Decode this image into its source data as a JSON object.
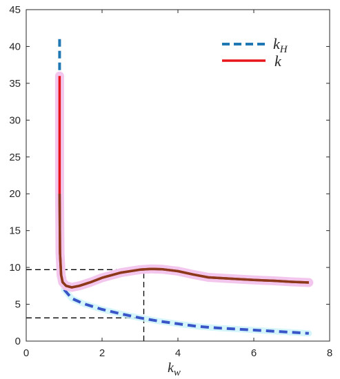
{
  "chart_data": {
    "type": "line",
    "xlabel": "k",
    "xlabel_sub": "w",
    "xlim": [
      0,
      8
    ],
    "ylim": [
      0,
      45
    ],
    "xticks": [
      0,
      2,
      4,
      6,
      8
    ],
    "yticks": [
      0,
      5,
      10,
      15,
      20,
      25,
      30,
      35,
      40,
      45
    ],
    "grid": false,
    "legend_position": "top-right",
    "colors": {
      "kH": "#1f77b4",
      "kH_lower": "#3a55c8",
      "k": "#e8161b",
      "k_overlay": "#8a3a1a",
      "highlight": "#f3c6ee",
      "highlight_blue": "#c9f2f7",
      "reference": "#000000"
    },
    "series": [
      {
        "name": "k",
        "name_sub": "H",
        "style": "dashed",
        "x": [
          0.88,
          0.88,
          1.0,
          1.2,
          1.5,
          2.0,
          2.5,
          3.0,
          3.5,
          4.0,
          4.5,
          5.0,
          5.5,
          6.0,
          6.5,
          7.0,
          7.45
        ],
        "y": [
          41.0,
          36.5,
          7.0,
          5.8,
          5.1,
          4.3,
          3.7,
          3.15,
          2.7,
          2.35,
          2.0,
          1.8,
          1.65,
          1.5,
          1.35,
          1.2,
          1.05
        ]
      },
      {
        "name": "k",
        "style": "solid",
        "x": [
          0.88,
          0.88,
          0.89,
          0.92,
          0.96,
          1.05,
          1.2,
          1.4,
          1.7,
          2.0,
          2.5,
          3.0,
          3.3,
          3.6,
          4.0,
          4.4,
          4.8,
          5.5,
          6.0,
          6.5,
          7.0,
          7.45
        ],
        "y": [
          36.0,
          20.0,
          12.0,
          9.0,
          8.0,
          7.5,
          7.3,
          7.5,
          8.0,
          8.6,
          9.3,
          9.7,
          9.8,
          9.75,
          9.5,
          9.05,
          8.65,
          8.45,
          8.3,
          8.2,
          8.05,
          7.95
        ]
      }
    ],
    "reference_lines": [
      {
        "x": 3.1,
        "y_low": 0,
        "y_high": 9.7
      },
      {
        "y": 9.7,
        "x_low": 0,
        "x_high": 3.1
      },
      {
        "y": 3.15,
        "x_low": 0,
        "x_high": 3.1
      }
    ]
  }
}
